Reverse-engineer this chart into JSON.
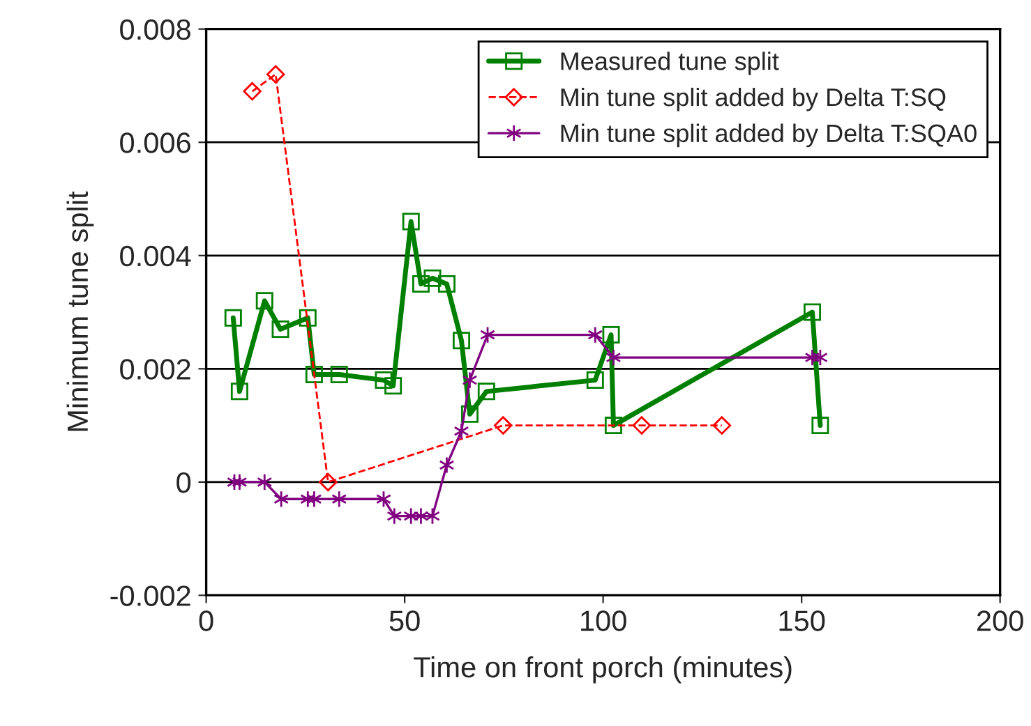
{
  "chart_data": {
    "type": "line",
    "xlabel": "Time on front porch (minutes)",
    "ylabel": "Minimum tune split",
    "xlim": [
      0,
      200
    ],
    "xticks": [
      0,
      50,
      100,
      150,
      200
    ],
    "ylim": [
      -0.002,
      0.008
    ],
    "yticks": [
      -0.002,
      0,
      0.002,
      0.004,
      0.006,
      0.008
    ],
    "grid": "y",
    "legend": "top right",
    "series": [
      {
        "name": "Measured tune split",
        "color": "#008000",
        "marker": "square",
        "line_style": "solid",
        "x": [
          6.8,
          8.4,
          14.7,
          18.7,
          25.6,
          27.2,
          33.5,
          44.7,
          47.1,
          51.6,
          54.1,
          57,
          60.6,
          64.3,
          66.4,
          70.6,
          98,
          102,
          102.6,
          152.7,
          154.7
        ],
        "values": [
          0.0029,
          0.0016,
          0.0032,
          0.0027,
          0.0029,
          0.0019,
          0.0019,
          0.0018,
          0.0017,
          0.0046,
          0.0035,
          0.0036,
          0.0035,
          0.0025,
          0.0012,
          0.0016,
          0.0018,
          0.0026,
          0.001,
          0.003,
          0.001
        ]
      },
      {
        "name": "Min tune split added by Delta T:SQ",
        "color": "#ff0000",
        "marker": "diamond",
        "line_style": "dashed",
        "x": [
          11.6,
          17.5,
          30.7,
          74.8,
          109.7,
          129.9
        ],
        "values": [
          0.0069,
          0.0072,
          0,
          0.001,
          0.001,
          0.001
        ]
      },
      {
        "name": "Min tune split added by Delta T:SQA0",
        "color": "#800080",
        "marker": "cross",
        "line_style": "solid",
        "x": [
          7.1,
          8.4,
          14.7,
          18.9,
          25.6,
          27.2,
          33.5,
          44.7,
          47.4,
          51.6,
          54.1,
          57,
          60.6,
          64.3,
          66.4,
          70.9,
          98,
          102.6,
          152.7,
          154.7
        ],
        "values": [
          0,
          0,
          0,
          -0.0003,
          -0.0003,
          -0.0003,
          -0.0003,
          -0.0003,
          -0.0006,
          -0.0006,
          -0.0006,
          -0.0006,
          0.0003,
          0.0009,
          0.0018,
          0.0026,
          0.0026,
          0.0022,
          0.0022,
          0.0022
        ]
      }
    ]
  }
}
